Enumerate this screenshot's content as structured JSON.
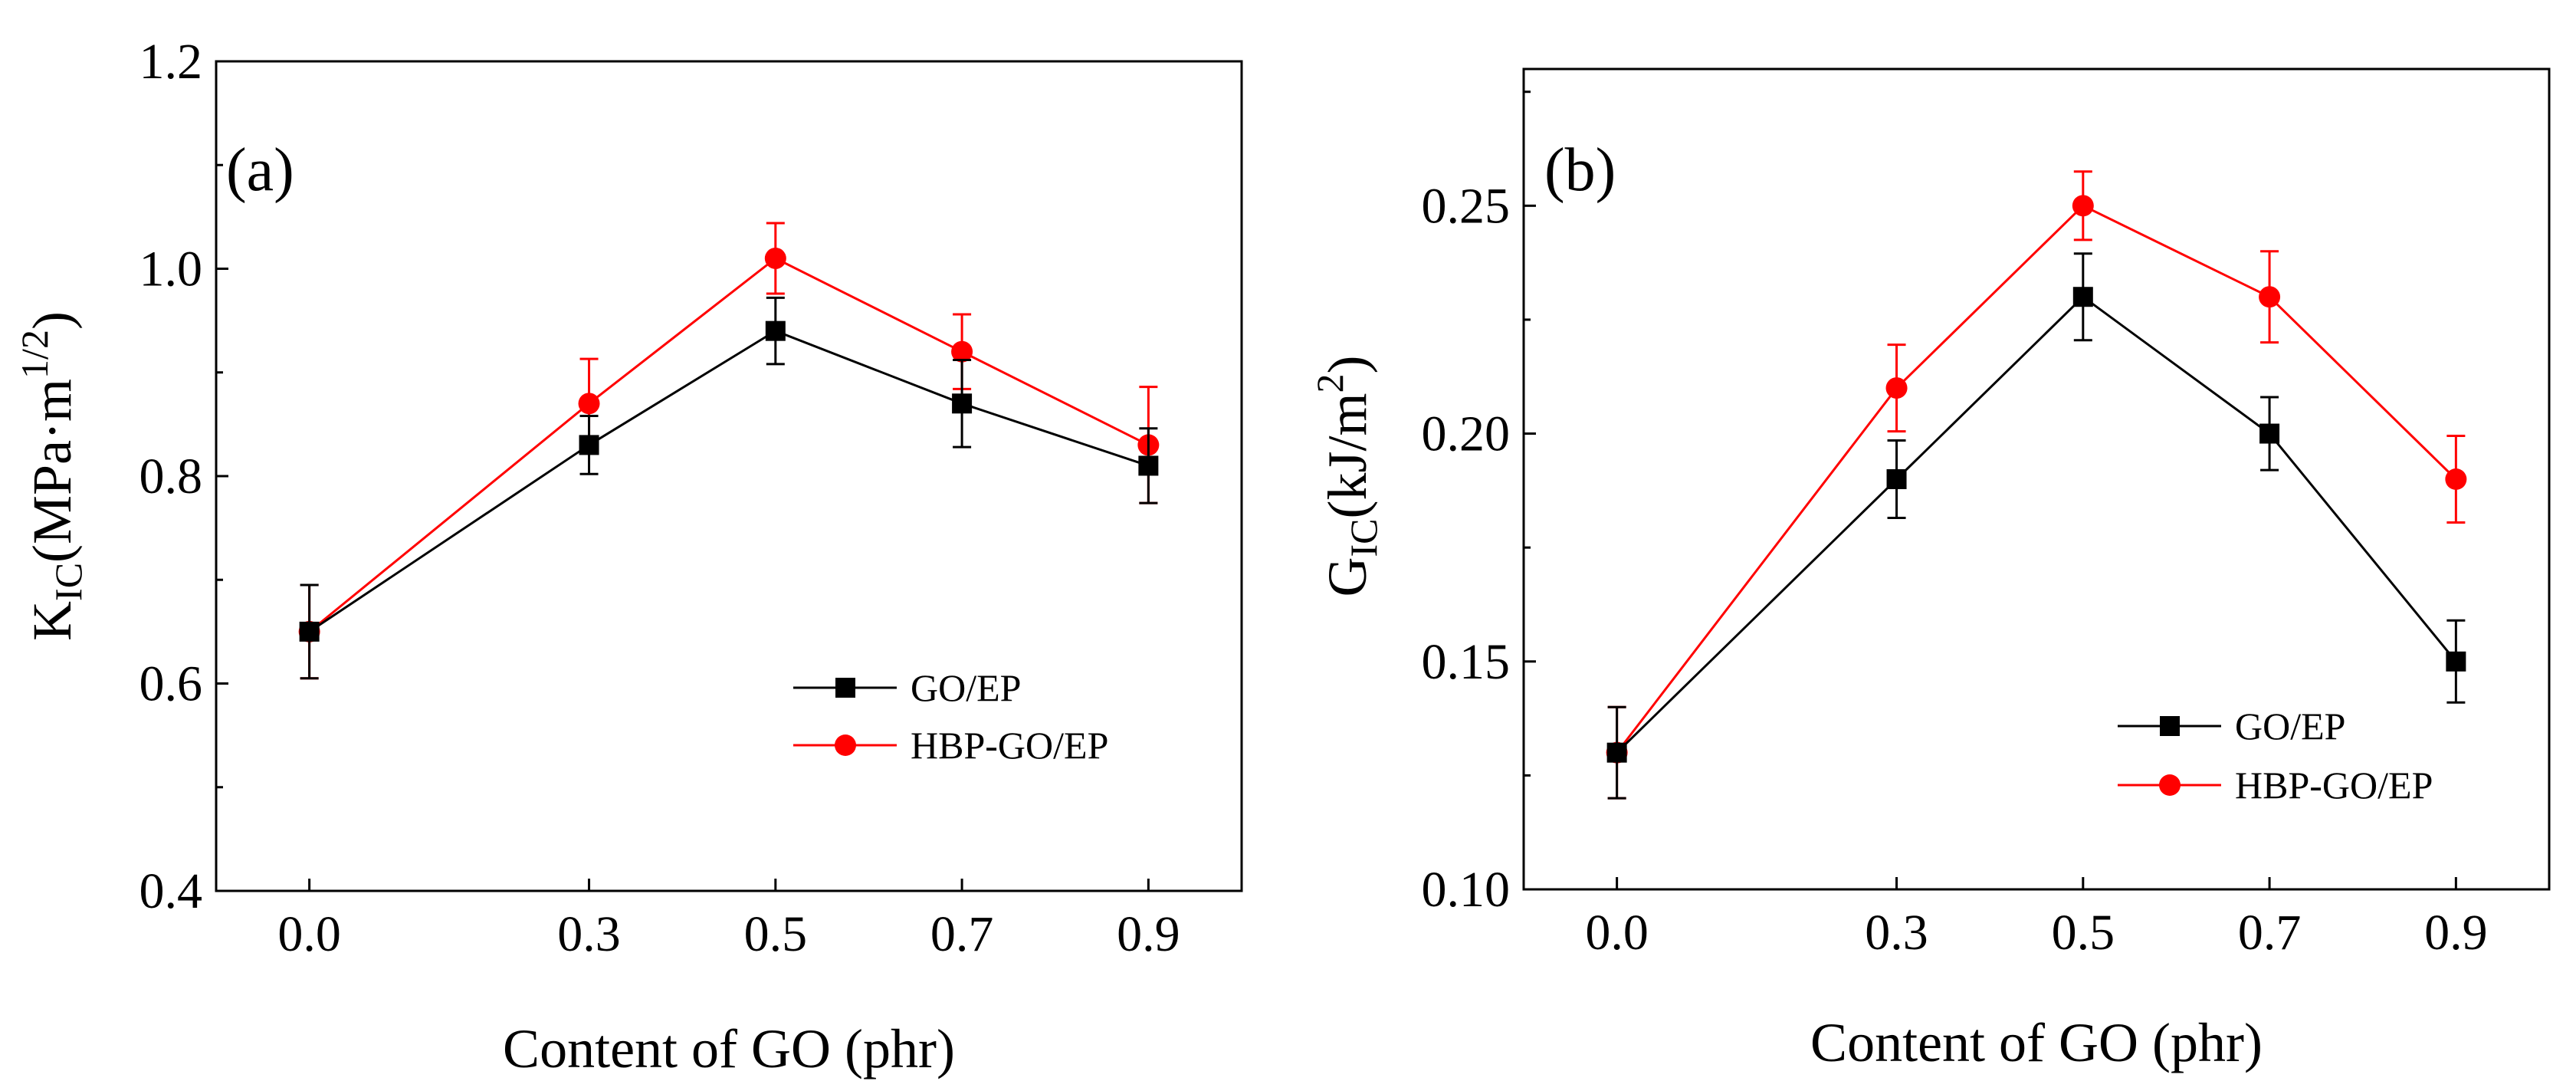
{
  "chart_data": [
    {
      "type": "line",
      "panel_label": "(a)",
      "title": "",
      "xlabel": "Content of GO (phr)",
      "ylabel": {
        "main": "K",
        "sub": "IC",
        "unit_open": "(MPa·m",
        "sup": "1/2",
        "unit_close": ")"
      },
      "x": [
        0.0,
        0.3,
        0.5,
        0.7,
        0.9
      ],
      "x_tick_labels": [
        "0.0",
        "0.3",
        "0.5",
        "0.7",
        "0.9"
      ],
      "xlim": [
        -0.1,
        1.0
      ],
      "ylim": [
        0.4,
        1.2
      ],
      "y_ticks": [
        0.4,
        0.6,
        0.8,
        1.0,
        1.2
      ],
      "y_tick_labels": [
        "0.4",
        "0.6",
        "0.8",
        "1.0",
        "1.2"
      ],
      "legend_position": "lower-right",
      "series": [
        {
          "name": "GO/EP",
          "color": "#000000",
          "marker": "square",
          "values": [
            0.65,
            0.83,
            0.94,
            0.87,
            0.81
          ],
          "errors": [
            0.045,
            0.028,
            0.032,
            0.042,
            0.036
          ]
        },
        {
          "name": "HBP-GO/EP",
          "color": "#ff0000",
          "marker": "circle",
          "values": [
            0.65,
            0.87,
            1.01,
            0.92,
            0.83
          ],
          "errors": [
            0.045,
            0.043,
            0.034,
            0.036,
            0.056
          ]
        }
      ]
    },
    {
      "type": "line",
      "panel_label": "(b)",
      "title": "",
      "xlabel": "Content of GO (phr)",
      "ylabel": {
        "main": "G",
        "sub": "IC",
        "unit_open": "(kJ/m",
        "sup": "2",
        "unit_close": ")"
      },
      "x": [
        0.0,
        0.3,
        0.5,
        0.7,
        0.9
      ],
      "x_tick_labels": [
        "0.0",
        "0.3",
        "0.5",
        "0.7",
        "0.9"
      ],
      "xlim": [
        -0.1,
        1.0
      ],
      "ylim": [
        0.1,
        0.28
      ],
      "y_ticks": [
        0.1,
        0.15,
        0.2,
        0.25
      ],
      "y_tick_labels": [
        "0.10",
        "0.15",
        "0.20",
        "0.25"
      ],
      "legend_position": "lower-right",
      "series": [
        {
          "name": "GO/EP",
          "color": "#000000",
          "marker": "square",
          "values": [
            0.13,
            0.19,
            0.23,
            0.2,
            0.15
          ],
          "errors": [
            0.01,
            0.0085,
            0.0095,
            0.008,
            0.009
          ]
        },
        {
          "name": "HBP-GO/EP",
          "color": "#ff0000",
          "marker": "circle",
          "values": [
            0.13,
            0.21,
            0.25,
            0.23,
            0.19
          ],
          "errors": [
            0.01,
            0.0095,
            0.0075,
            0.01,
            0.0095
          ]
        }
      ]
    }
  ]
}
